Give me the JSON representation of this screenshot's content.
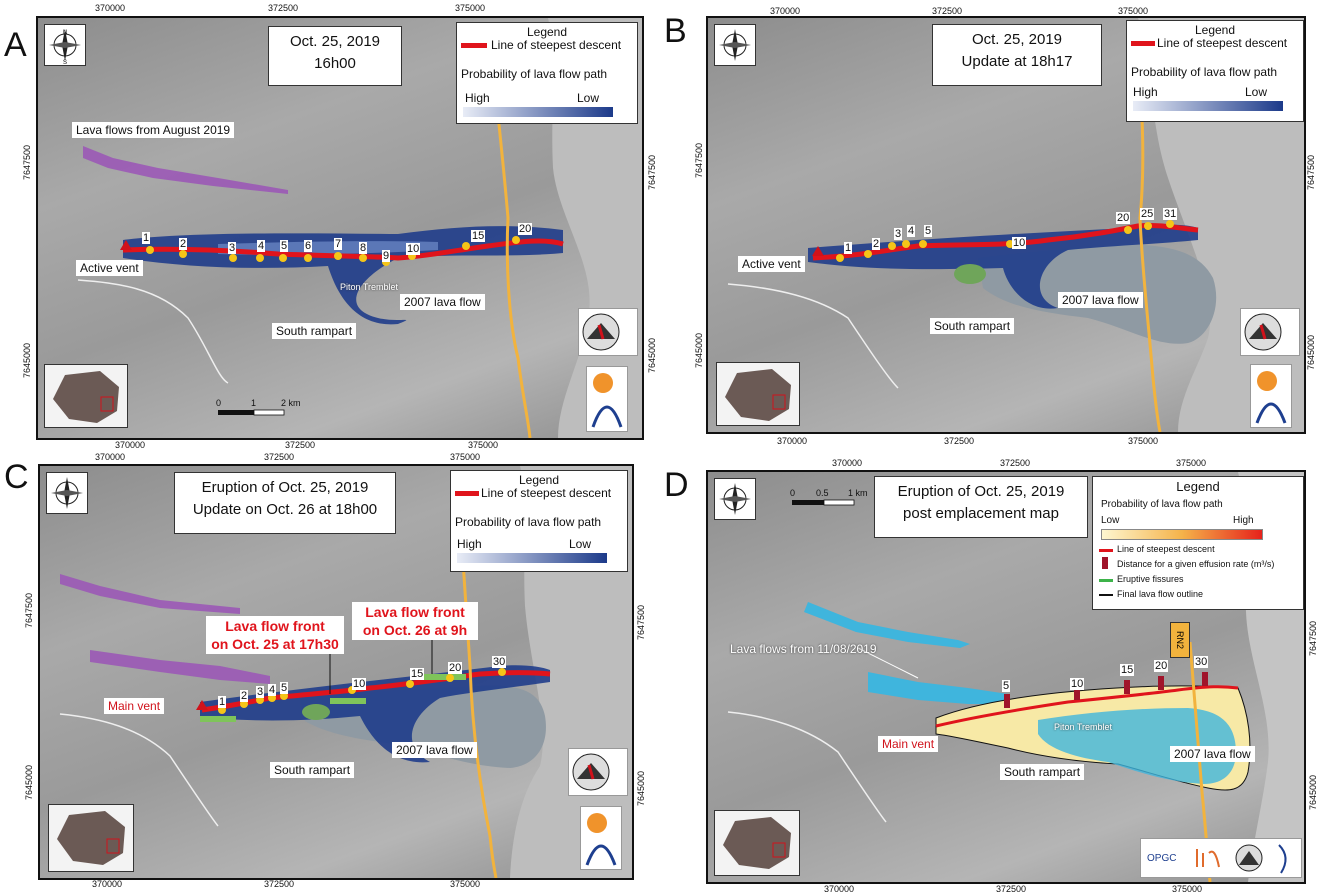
{
  "panels": [
    {
      "letter": "A",
      "title_line1": "Oct. 25, 2019",
      "title_line2": "16h00",
      "legend_title": "Legend",
      "legend_line": "Line of steepest descent",
      "legend_prob": "Probability of lava flow path",
      "legend_high": "High",
      "legend_low": "Low",
      "label_vent": "Active vent",
      "label_2007": "2007 lava flow",
      "label_rampart": "South rampart",
      "label_old_flows": "Lava flows from August 2019",
      "label_piton": "Piton Tremblet",
      "numbers": [
        "1",
        "2",
        "3",
        "4",
        "5",
        "6",
        "7",
        "8",
        "9",
        "10",
        "15",
        "20"
      ],
      "x_ticks": [
        "370000",
        "372500",
        "375000"
      ],
      "y_ticks": [
        "7647500",
        "7645000"
      ],
      "scale": [
        "0",
        "1",
        "2 km"
      ]
    },
    {
      "letter": "B",
      "title_line1": "Oct. 25, 2019",
      "title_line2": "Update at 18h17",
      "legend_title": "Legend",
      "legend_line": "Line of steepest descent",
      "legend_prob": "Probability of lava flow path",
      "legend_high": "High",
      "legend_low": "Low",
      "label_vent": "Active vent",
      "label_2007": "2007 lava flow",
      "label_rampart": "South rampart",
      "numbers": [
        "1",
        "2",
        "3",
        "4",
        "5",
        "10",
        "20",
        "25",
        "31"
      ],
      "x_ticks": [
        "370000",
        "372500",
        "375000"
      ],
      "y_ticks": [
        "7647500",
        "7645000"
      ]
    },
    {
      "letter": "C",
      "title_line1": "Eruption of Oct. 25, 2019",
      "title_line2": "Update on Oct. 26 at 18h00",
      "legend_title": "Legend",
      "legend_line": "Line of steepest descent",
      "legend_prob": "Probability of lava flow path",
      "legend_high": "High",
      "legend_low": "Low",
      "label_vent": "Main vent",
      "label_2007": "2007 lava flow",
      "label_rampart": "South rampart",
      "front1_line1": "Lava flow front",
      "front1_line2": "on Oct. 25 at 17h30",
      "front2_line1": "Lava flow front",
      "front2_line2": "on Oct. 26 at 9h",
      "numbers": [
        "1",
        "2",
        "3",
        "4",
        "5",
        "10",
        "15",
        "20",
        "30"
      ],
      "x_ticks": [
        "370000",
        "372500",
        "375000"
      ],
      "y_ticks": [
        "7647500",
        "7645000"
      ]
    },
    {
      "letter": "D",
      "title_line1": "Eruption of Oct. 25, 2019",
      "title_line2": "post emplacement  map",
      "legend_title": "Legend",
      "legend_prob": "Probability of lava flow path",
      "legend_low": "Low",
      "legend_high": "High",
      "legend_items": [
        "Line of steepest descent",
        "Distance for a given effusion rate (m³/s)",
        "Eruptive fissures",
        "Final lava flow outline"
      ],
      "label_vent": "Main vent",
      "label_2007": "2007 lava flow",
      "label_rampart": "South rampart",
      "label_old_flows": "Lava flows from 11/08/2019",
      "label_piton": "Piton Tremblet",
      "label_road": "RN2",
      "numbers": [
        "5",
        "10",
        "15",
        "20",
        "30"
      ],
      "x_ticks": [
        "370000",
        "372500",
        "375000"
      ],
      "y_ticks": [
        "7647500",
        "7645000"
      ],
      "scale": [
        "0",
        "0.5",
        "1 km"
      ]
    }
  ],
  "colors": {
    "steepest": "#e0141c",
    "prob_high": "#e8ecf6",
    "prob_low": "#1c3a8a",
    "old_flow": "#9b59b6",
    "flow_2007": "#8f9aa3",
    "road": "#f2b33d",
    "d_low": "#fdf6d0",
    "d_high": "#e6221b",
    "d_old": "#3fb5dd"
  }
}
